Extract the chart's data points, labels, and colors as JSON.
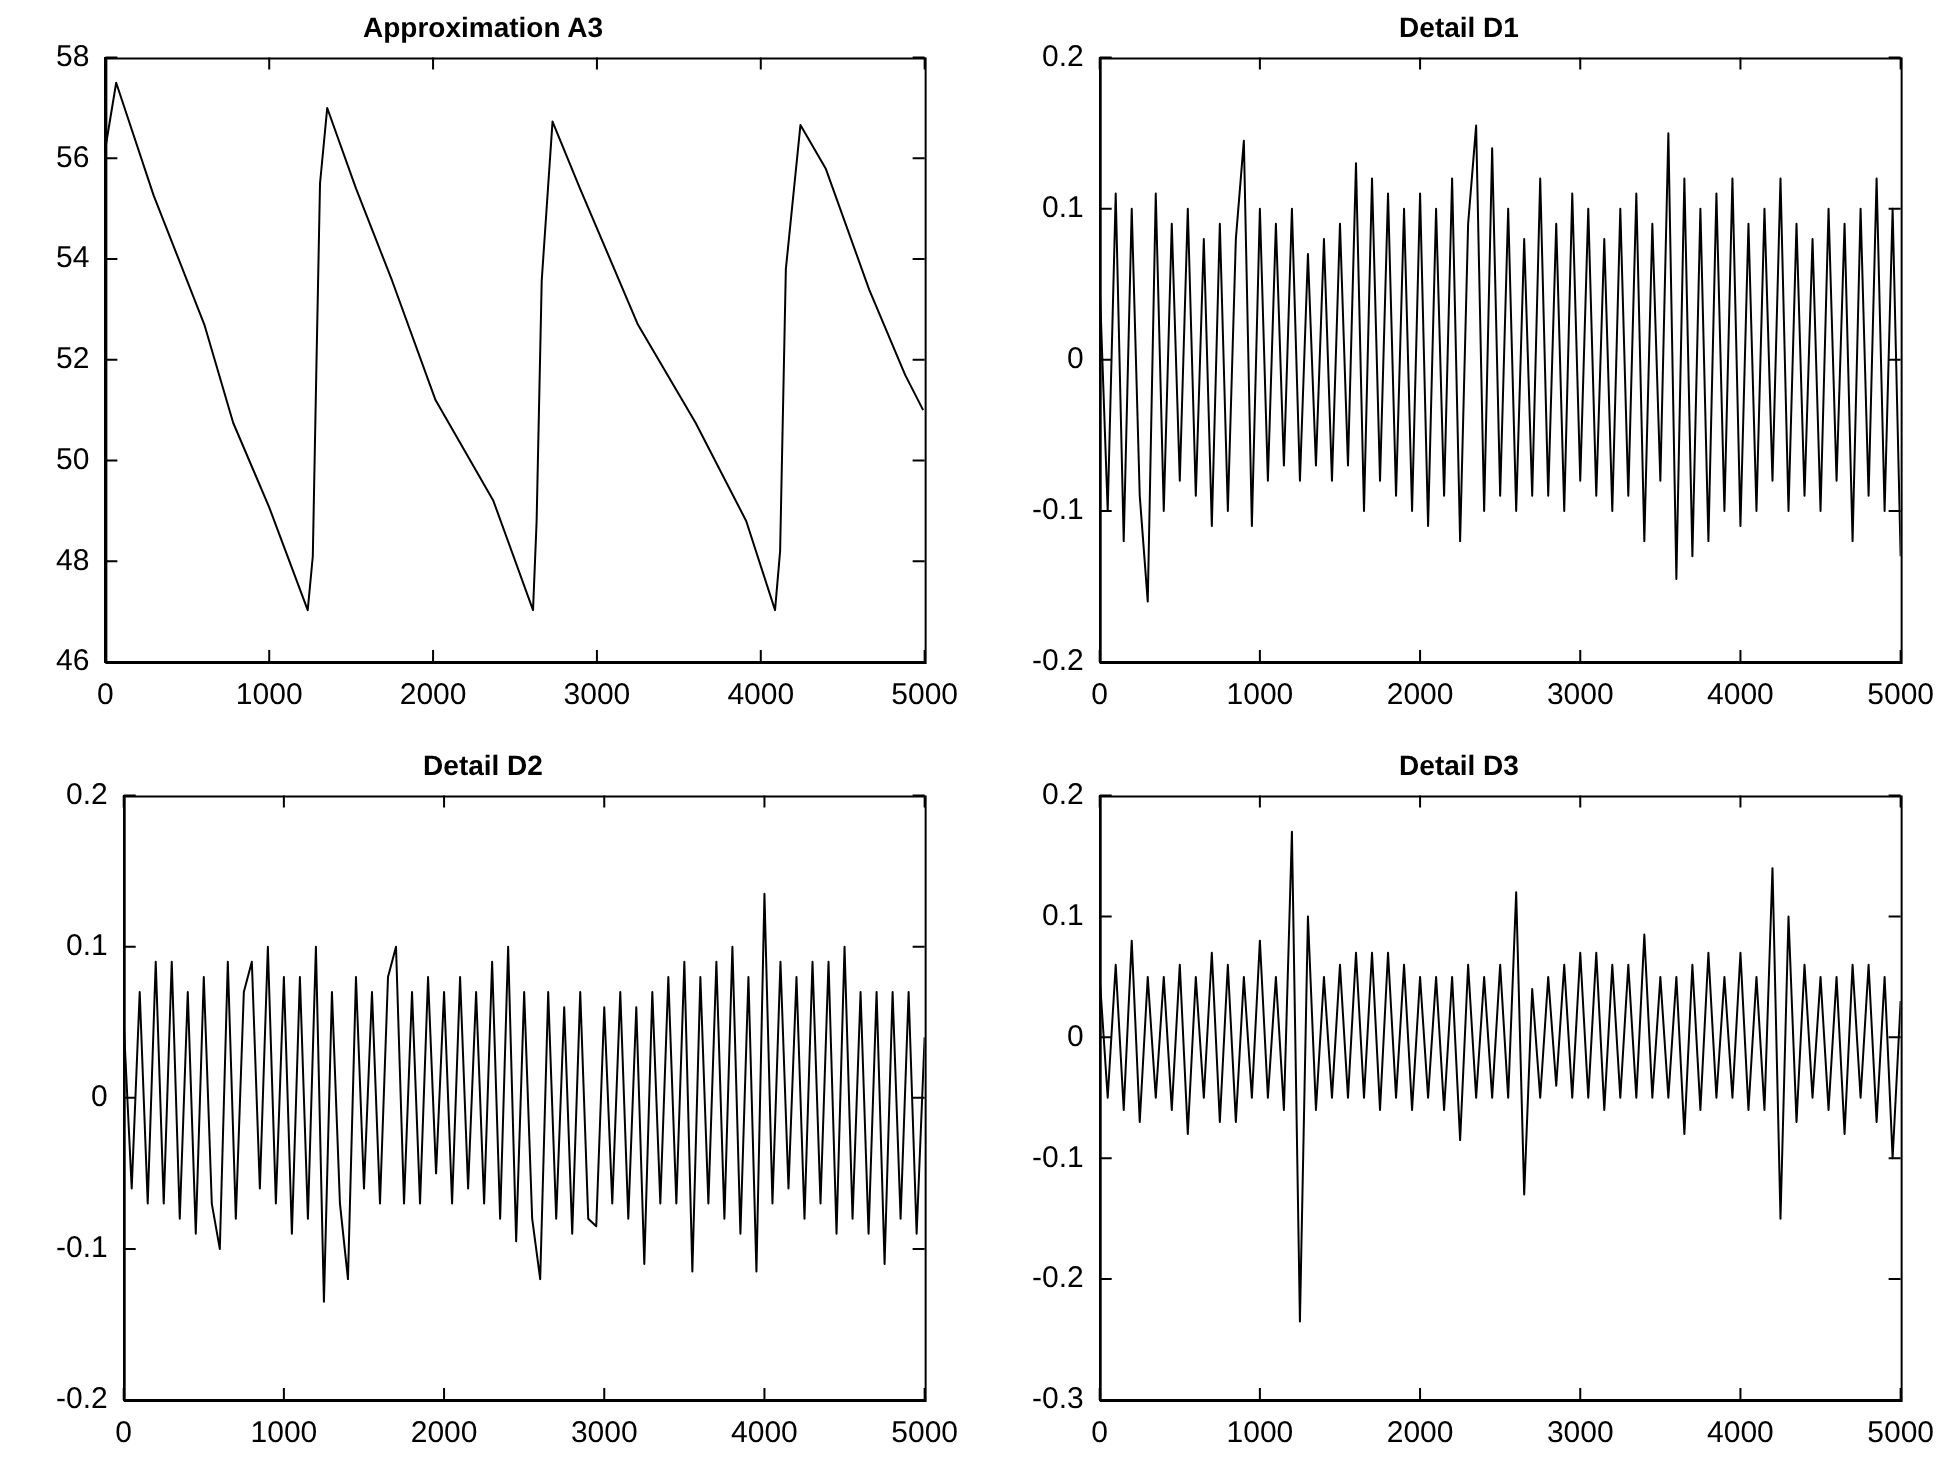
{
  "chart_data": [
    {
      "type": "line",
      "title": "Approximation A3",
      "marker": "none",
      "color": "#000000",
      "xlim": [
        0,
        5000
      ],
      "xticks": [
        0,
        1000,
        2000,
        3000,
        4000,
        5000
      ],
      "ylim": [
        46,
        58
      ],
      "yticks": [
        46,
        48,
        50,
        52,
        54,
        56,
        58
      ],
      "x": [
        0,
        66,
        295,
        604,
        780,
        1000,
        1235,
        1266,
        1287,
        1310,
        1354,
        1530,
        1750,
        2015,
        2368,
        2610,
        2632,
        2663,
        2729,
        2897,
        3250,
        3602,
        3911,
        4087,
        4118,
        4153,
        4242,
        4396,
        4661,
        4881,
        4991
      ],
      "values": [
        56.2,
        57.5,
        55.26,
        52.7,
        50.75,
        49.07,
        47.03,
        48.1,
        51.7,
        55.5,
        57.0,
        55.4,
        53.57,
        51.2,
        49.2,
        47.03,
        48.8,
        53.57,
        56.73,
        55.4,
        52.7,
        50.75,
        48.8,
        47.03,
        48.2,
        53.8,
        56.66,
        55.8,
        53.4,
        51.7,
        51.0
      ]
    },
    {
      "type": "line",
      "title": "Detail D1",
      "marker": "none",
      "color": "#000000",
      "xlim": [
        0,
        5000
      ],
      "xticks": [
        0,
        1000,
        2000,
        3000,
        4000,
        5000
      ],
      "ylim": [
        -0.2,
        0.2
      ],
      "yticks": [
        -0.2,
        -0.1,
        0,
        0.1,
        0.2
      ],
      "x": [
        0,
        50,
        100,
        150,
        200,
        250,
        300,
        350,
        400,
        450,
        500,
        550,
        600,
        650,
        700,
        750,
        800,
        850,
        900,
        950,
        1000,
        1050,
        1100,
        1150,
        1200,
        1250,
        1300,
        1350,
        1400,
        1450,
        1500,
        1550,
        1600,
        1650,
        1700,
        1750,
        1800,
        1850,
        1900,
        1950,
        2000,
        2050,
        2100,
        2150,
        2200,
        2250,
        2300,
        2350,
        2400,
        2450,
        2500,
        2550,
        2600,
        2650,
        2700,
        2750,
        2800,
        2850,
        2900,
        2950,
        3000,
        3050,
        3100,
        3150,
        3200,
        3250,
        3300,
        3350,
        3400,
        3450,
        3500,
        3550,
        3600,
        3650,
        3700,
        3750,
        3800,
        3850,
        3900,
        3950,
        4000,
        4050,
        4100,
        4150,
        4200,
        4250,
        4300,
        4350,
        4400,
        4450,
        4500,
        4550,
        4600,
        4650,
        4700,
        4750,
        4800,
        4850,
        4900,
        4950,
        5000
      ],
      "values": [
        0.05,
        -0.1,
        0.11,
        -0.12,
        0.1,
        -0.09,
        -0.16,
        0.11,
        -0.1,
        0.09,
        -0.08,
        0.1,
        -0.09,
        0.08,
        -0.11,
        0.09,
        -0.1,
        0.08,
        0.145,
        -0.11,
        0.1,
        -0.08,
        0.09,
        -0.07,
        0.1,
        -0.08,
        0.07,
        -0.07,
        0.08,
        -0.08,
        0.09,
        -0.07,
        0.13,
        -0.1,
        0.12,
        -0.08,
        0.11,
        -0.09,
        0.1,
        -0.1,
        0.11,
        -0.11,
        0.1,
        -0.09,
        0.12,
        -0.12,
        0.09,
        0.155,
        -0.1,
        0.14,
        -0.09,
        0.1,
        -0.1,
        0.08,
        -0.09,
        0.12,
        -0.09,
        0.09,
        -0.1,
        0.11,
        -0.08,
        0.1,
        -0.09,
        0.08,
        -0.1,
        0.1,
        -0.09,
        0.11,
        -0.12,
        0.09,
        -0.08,
        0.15,
        -0.145,
        0.12,
        -0.13,
        0.1,
        -0.12,
        0.11,
        -0.1,
        0.12,
        -0.11,
        0.09,
        -0.1,
        0.1,
        -0.08,
        0.12,
        -0.1,
        0.09,
        -0.09,
        0.08,
        -0.1,
        0.1,
        -0.08,
        0.09,
        -0.12,
        0.1,
        -0.09,
        0.12,
        -0.1,
        0.1,
        -0.13
      ]
    },
    {
      "type": "line",
      "title": "Detail D2",
      "marker": "none",
      "color": "#000000",
      "xlim": [
        0,
        5000
      ],
      "xticks": [
        0,
        1000,
        2000,
        3000,
        4000,
        5000
      ],
      "ylim": [
        -0.2,
        0.2
      ],
      "yticks": [
        -0.2,
        -0.1,
        0,
        0.1,
        0.2
      ],
      "x": [
        0,
        50,
        100,
        150,
        200,
        250,
        300,
        350,
        400,
        450,
        500,
        550,
        600,
        650,
        700,
        750,
        800,
        850,
        900,
        950,
        1000,
        1050,
        1100,
        1150,
        1200,
        1250,
        1300,
        1350,
        1400,
        1450,
        1500,
        1550,
        1600,
        1650,
        1700,
        1750,
        1800,
        1850,
        1900,
        1950,
        2000,
        2050,
        2100,
        2150,
        2200,
        2250,
        2300,
        2350,
        2400,
        2450,
        2500,
        2550,
        2600,
        2650,
        2700,
        2750,
        2800,
        2850,
        2900,
        2950,
        3000,
        3050,
        3100,
        3150,
        3200,
        3250,
        3300,
        3350,
        3400,
        3450,
        3500,
        3550,
        3600,
        3650,
        3700,
        3750,
        3800,
        3850,
        3900,
        3950,
        4000,
        4050,
        4100,
        4150,
        4200,
        4250,
        4300,
        4350,
        4400,
        4450,
        4500,
        4550,
        4600,
        4650,
        4700,
        4750,
        4800,
        4850,
        4900,
        4950,
        5000
      ],
      "values": [
        0.05,
        -0.06,
        0.07,
        -0.07,
        0.09,
        -0.07,
        0.09,
        -0.08,
        0.07,
        -0.09,
        0.08,
        -0.07,
        -0.1,
        0.09,
        -0.08,
        0.07,
        0.09,
        -0.06,
        0.1,
        -0.07,
        0.08,
        -0.09,
        0.08,
        -0.08,
        0.1,
        -0.135,
        0.07,
        -0.07,
        -0.12,
        0.08,
        -0.06,
        0.07,
        -0.07,
        0.08,
        0.1,
        -0.07,
        0.07,
        -0.07,
        0.08,
        -0.05,
        0.07,
        -0.07,
        0.08,
        -0.06,
        0.07,
        -0.07,
        0.09,
        -0.08,
        0.1,
        -0.095,
        0.07,
        -0.08,
        -0.12,
        0.07,
        -0.08,
        0.06,
        -0.09,
        0.07,
        -0.08,
        -0.085,
        0.06,
        -0.07,
        0.07,
        -0.08,
        0.06,
        -0.11,
        0.07,
        -0.07,
        0.08,
        -0.07,
        0.09,
        -0.115,
        0.08,
        -0.07,
        0.09,
        -0.08,
        0.1,
        -0.09,
        0.08,
        -0.115,
        0.135,
        -0.07,
        0.09,
        -0.06,
        0.08,
        -0.08,
        0.09,
        -0.07,
        0.09,
        -0.09,
        0.1,
        -0.08,
        0.07,
        -0.09,
        0.07,
        -0.11,
        0.07,
        -0.08,
        0.07,
        -0.09,
        0.04
      ]
    },
    {
      "type": "line",
      "title": "Detail D3",
      "marker": "none",
      "color": "#000000",
      "xlim": [
        0,
        5000
      ],
      "xticks": [
        0,
        1000,
        2000,
        3000,
        4000,
        5000
      ],
      "ylim": [
        -0.3,
        0.2
      ],
      "yticks": [
        -0.3,
        -0.2,
        -0.1,
        0,
        0.1,
        0.2
      ],
      "x": [
        0,
        50,
        100,
        150,
        200,
        250,
        300,
        350,
        400,
        450,
        500,
        550,
        600,
        650,
        700,
        750,
        800,
        850,
        900,
        950,
        1000,
        1050,
        1100,
        1150,
        1200,
        1250,
        1300,
        1350,
        1400,
        1450,
        1500,
        1550,
        1600,
        1650,
        1700,
        1750,
        1800,
        1850,
        1900,
        1950,
        2000,
        2050,
        2100,
        2150,
        2200,
        2250,
        2300,
        2350,
        2400,
        2450,
        2500,
        2550,
        2600,
        2650,
        2700,
        2750,
        2800,
        2850,
        2900,
        2950,
        3000,
        3050,
        3100,
        3150,
        3200,
        3250,
        3300,
        3350,
        3400,
        3450,
        3500,
        3550,
        3600,
        3650,
        3700,
        3750,
        3800,
        3850,
        3900,
        3950,
        4000,
        4050,
        4100,
        4150,
        4200,
        4250,
        4300,
        4350,
        4400,
        4450,
        4500,
        4550,
        4600,
        4650,
        4700,
        4750,
        4800,
        4850,
        4900,
        4950,
        5000
      ],
      "values": [
        0.05,
        -0.05,
        0.06,
        -0.06,
        0.08,
        -0.07,
        0.05,
        -0.05,
        0.05,
        -0.06,
        0.06,
        -0.08,
        0.05,
        -0.05,
        0.07,
        -0.07,
        0.06,
        -0.07,
        0.05,
        -0.05,
        0.08,
        -0.05,
        0.05,
        -0.06,
        0.17,
        -0.235,
        0.1,
        -0.06,
        0.05,
        -0.05,
        0.06,
        -0.05,
        0.07,
        -0.05,
        0.07,
        -0.06,
        0.07,
        -0.05,
        0.06,
        -0.06,
        0.05,
        -0.05,
        0.05,
        -0.06,
        0.05,
        -0.085,
        0.06,
        -0.05,
        0.05,
        -0.05,
        0.06,
        -0.05,
        0.12,
        -0.13,
        0.04,
        -0.05,
        0.05,
        -0.04,
        0.06,
        -0.05,
        0.07,
        -0.05,
        0.07,
        -0.06,
        0.06,
        -0.05,
        0.06,
        -0.05,
        0.085,
        -0.05,
        0.05,
        -0.05,
        0.05,
        -0.08,
        0.06,
        -0.06,
        0.07,
        -0.05,
        0.05,
        -0.05,
        0.07,
        -0.06,
        0.05,
        -0.06,
        0.14,
        -0.15,
        0.1,
        -0.07,
        0.06,
        -0.05,
        0.05,
        -0.06,
        0.05,
        -0.08,
        0.06,
        -0.05,
        0.06,
        -0.07,
        0.05,
        -0.1,
        0.03
      ]
    }
  ]
}
